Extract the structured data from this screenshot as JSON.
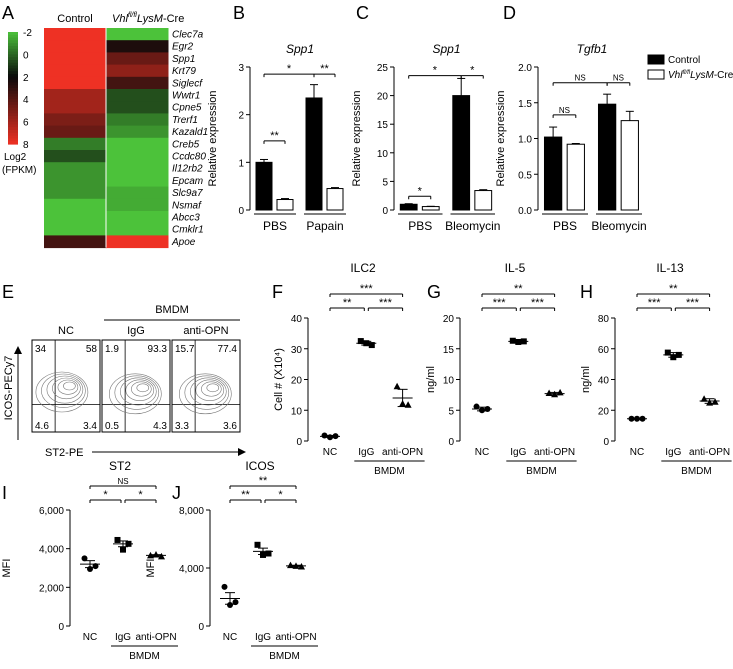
{
  "figure": {
    "panels": {
      "A": "A",
      "B": "B",
      "C": "C",
      "D": "D",
      "E": "E",
      "F": "F",
      "G": "G",
      "H": "H",
      "I": "I",
      "J": "J"
    }
  },
  "chart_data": [
    {
      "panel": "A",
      "type": "heatmap",
      "columns": [
        "Control",
        "Vhl fl/fl LysM-Cre"
      ],
      "column_labels": {
        "control": "Control",
        "vhl": "Vhl",
        "vhl_sup": "fl/fl",
        "lysm": "LysM",
        "cre": "-Cre"
      },
      "rows": [
        "Clec7a",
        "Egr2",
        "Spp1",
        "Krt79",
        "Siglecf",
        "Wwtr1",
        "Cpne5",
        "Trerf1",
        "Kazald1",
        "Creb5",
        "Ccdc80",
        "Il12rb2",
        "Epcam",
        "Slc9a7",
        "Nsmaf",
        "Abcc3",
        "Cmklr1",
        "Apoe"
      ],
      "values": [
        [
          8,
          -2.5
        ],
        [
          8,
          2.5
        ],
        [
          8,
          4.5
        ],
        [
          8,
          5.5
        ],
        [
          8,
          3.5
        ],
        [
          6,
          0.5
        ],
        [
          6,
          0.5
        ],
        [
          5,
          -0.5
        ],
        [
          4.5,
          -1
        ],
        [
          -0.5,
          -2
        ],
        [
          0.5,
          -2.5
        ],
        [
          -1,
          -2
        ],
        [
          -1,
          -2
        ],
        [
          -1,
          -1.5
        ],
        [
          -2,
          -1.5
        ],
        [
          -2,
          -2
        ],
        [
          -2,
          -3
        ],
        [
          3.5,
          8
        ]
      ],
      "colorbar": {
        "ticks": [
          "-2",
          "0",
          "2",
          "4",
          "6",
          "8"
        ],
        "range": [
          -2,
          8
        ],
        "low_color": "#4cc23a",
        "mid_color": "#0a0a0a",
        "high_color": "#ee3124",
        "label_line1": "Log2",
        "label_line2": "(FPKM)"
      }
    },
    {
      "panel": "B",
      "type": "bar",
      "title": "Spp1",
      "ylabel": "Relative expression",
      "ylim": [
        0,
        3
      ],
      "yticks": [
        "0",
        "1",
        "2",
        "3"
      ],
      "groups": [
        "PBS",
        "Papain"
      ],
      "series": [
        {
          "name": "Control",
          "values": [
            1.0,
            2.35
          ],
          "errors": [
            0.06,
            0.28
          ]
        },
        {
          "name": "Vhl fl/fl LysM-Cre",
          "values": [
            0.22,
            0.45
          ],
          "errors": [
            0.02,
            0.02
          ]
        }
      ],
      "significance": [
        "**",
        "*",
        "**"
      ]
    },
    {
      "panel": "C",
      "type": "bar",
      "title": "Spp1",
      "ylabel": "Relative expression",
      "ylim": [
        0,
        25
      ],
      "yticks": [
        "0",
        "5",
        "10",
        "15",
        "20",
        "25"
      ],
      "groups": [
        "PBS",
        "Bleomycin"
      ],
      "series": [
        {
          "name": "Control",
          "values": [
            1.0,
            20.0
          ],
          "errors": [
            0.1,
            3.0
          ]
        },
        {
          "name": "Vhl fl/fl LysM-Cre",
          "values": [
            0.6,
            3.4
          ],
          "errors": [
            0.05,
            0.15
          ]
        }
      ],
      "significance": [
        "*",
        "*",
        "*"
      ]
    },
    {
      "panel": "D",
      "type": "bar",
      "title": "Tgfb1",
      "ylabel": "Relative expression",
      "ylim": [
        0,
        2.0
      ],
      "yticks": [
        "0.0",
        "0.5",
        "1.0",
        "1.5",
        "2.0"
      ],
      "groups": [
        "PBS",
        "Bleomycin"
      ],
      "series": [
        {
          "name": "Control",
          "values": [
            1.02,
            1.48
          ],
          "errors": [
            0.14,
            0.14
          ]
        },
        {
          "name": "Vhl fl/fl LysM-Cre",
          "values": [
            0.92,
            1.25
          ],
          "errors": [
            0.01,
            0.13
          ]
        }
      ],
      "significance": [
        "NS",
        "NS",
        "NS"
      ],
      "legend": {
        "control": "Control",
        "vhl": "Vhl",
        "vhl_sup": "fl/fl",
        "lysm": "LysM",
        "cre": "-Cre"
      }
    },
    {
      "panel": "E",
      "type": "table",
      "bmdm_label": "BMDM",
      "ylabel": "ICOS-PECy7",
      "xlabel": "ST2-PE",
      "plots": [
        {
          "name": "NC",
          "quadrants": [
            "34",
            "58",
            "4.6",
            "3.4"
          ]
        },
        {
          "name": "IgG",
          "quadrants": [
            "1.9",
            "93.3",
            "0.5",
            "4.3"
          ]
        },
        {
          "name": "anti-OPN",
          "quadrants": [
            "15.7",
            "77.4",
            "3.3",
            "3.6"
          ]
        }
      ]
    },
    {
      "panel": "F",
      "type": "scatter",
      "title": "ILC2",
      "ylabel": "Cell # (X10⁴)",
      "ylim": [
        0,
        40
      ],
      "yticks": [
        "0",
        "10",
        "20",
        "30",
        "40"
      ],
      "categories": [
        "NC",
        "IgG",
        "anti-OPN"
      ],
      "group_label": "BMDM",
      "points": [
        [
          1.8,
          1.2,
          1.6
        ],
        [
          32.5,
          31.8,
          31.2
        ],
        [
          17.8,
          12.2,
          11.8
        ]
      ],
      "means": [
        1.5,
        31.8,
        14.0
      ],
      "sems": [
        0.3,
        0.6,
        2.8
      ],
      "markers": [
        "circle",
        "square",
        "triangle"
      ],
      "significance": [
        "***",
        "**",
        "***"
      ]
    },
    {
      "panel": "G",
      "type": "scatter",
      "title": "IL-5",
      "ylabel": "ng/ml",
      "ylim": [
        0,
        20
      ],
      "yticks": [
        "0",
        "5",
        "10",
        "15",
        "20"
      ],
      "categories": [
        "NC",
        "IgG",
        "anti-OPN"
      ],
      "group_label": "BMDM",
      "points": [
        [
          5.6,
          5.0,
          5.2
        ],
        [
          16.3,
          16.1,
          16.2
        ],
        [
          7.8,
          7.6,
          7.9
        ]
      ],
      "means": [
        5.2,
        16.2,
        7.7
      ],
      "sems": [
        0.3,
        0.1,
        0.2
      ],
      "markers": [
        "circle",
        "square",
        "triangle"
      ],
      "significance": [
        "**",
        "***",
        "***"
      ]
    },
    {
      "panel": "H",
      "type": "scatter",
      "title": "IL-13",
      "ylabel": "ng/ml",
      "ylim": [
        0,
        80
      ],
      "yticks": [
        "0",
        "20",
        "40",
        "60",
        "80"
      ],
      "categories": [
        "NC",
        "IgG",
        "anti-OPN"
      ],
      "group_label": "BMDM",
      "points": [
        [
          14.5,
          14.5,
          14.5
        ],
        [
          57.5,
          54.5,
          56.0
        ],
        [
          27.5,
          25.0,
          25.5
        ]
      ],
      "means": [
        14.5,
        56.0,
        26.0
      ],
      "sems": [
        0.3,
        1.5,
        1.5
      ],
      "markers": [
        "circle",
        "square",
        "triangle"
      ],
      "significance": [
        "**",
        "***",
        "***"
      ]
    },
    {
      "panel": "I",
      "type": "scatter",
      "title": "ST2",
      "ylabel": "MFI",
      "ylim": [
        0,
        6000
      ],
      "yticks": [
        "0",
        "2,000",
        "4,000",
        "6,000"
      ],
      "categories": [
        "NC",
        "IgG",
        "anti-OPN"
      ],
      "group_label": "BMDM",
      "points": [
        [
          3500,
          2950,
          3100
        ],
        [
          4450,
          3950,
          4250
        ],
        [
          3650,
          3700,
          3600
        ]
      ],
      "means": [
        3200,
        4250,
        3650
      ],
      "sems": [
        180,
        150,
        40
      ],
      "markers": [
        "circle",
        "square",
        "triangle"
      ],
      "significance": [
        "NS",
        "*",
        "*"
      ]
    },
    {
      "panel": "J",
      "type": "scatter",
      "title": "ICOS",
      "ylabel": "MFI",
      "ylim": [
        0,
        8000
      ],
      "yticks": [
        "0",
        "4,000",
        "8,000"
      ],
      "categories": [
        "NC",
        "IgG",
        "anti-OPN"
      ],
      "group_label": "BMDM",
      "points": [
        [
          2700,
          1450,
          1650
        ],
        [
          5600,
          4900,
          5000
        ],
        [
          4200,
          4150,
          4100
        ]
      ],
      "means": [
        1900,
        5150,
        4150
      ],
      "sems": [
        400,
        220,
        40
      ],
      "markers": [
        "circle",
        "square",
        "triangle"
      ],
      "significance": [
        "**",
        "**",
        "*"
      ]
    }
  ]
}
